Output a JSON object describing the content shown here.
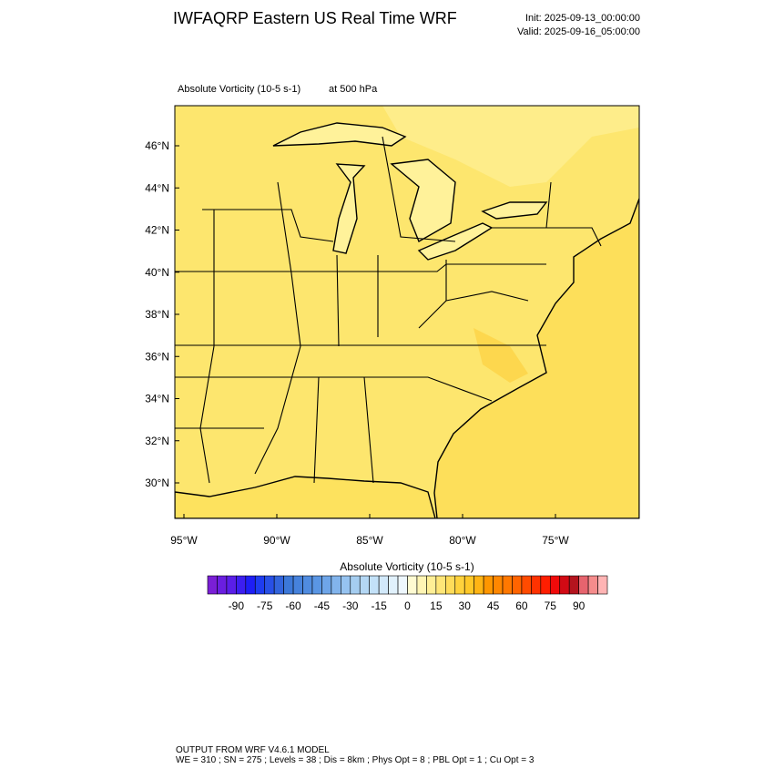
{
  "header": {
    "title": "IWFAQRP Eastern US Real Time WRF",
    "init": "Init: 2025-09-13_00:00:00",
    "valid": "Valid: 2025-09-16_05:00:00"
  },
  "map": {
    "field_label": "Absolute Vorticity   (10-5 s-1)",
    "level_label": "at   500 hPa",
    "lat_labels": [
      "46°N",
      "44°N",
      "42°N",
      "40°N",
      "38°N",
      "36°N",
      "34°N",
      "32°N",
      "30°N"
    ],
    "lon_labels": [
      "95°W",
      "90°W",
      "85°W",
      "80°W",
      "75°W"
    ]
  },
  "colorbar": {
    "title": "Absolute Vorticity  (10-5 s-1)",
    "lim": [
      -105,
      105
    ],
    "ticks": [
      -90,
      -75,
      -60,
      -45,
      -30,
      -15,
      0,
      15,
      30,
      45,
      60,
      75,
      90
    ],
    "colors": [
      "#7a1fd6",
      "#6a1ee0",
      "#5a1ee8",
      "#3c1ef0",
      "#1e1ef5",
      "#1e3cf0",
      "#2850e6",
      "#3264dc",
      "#3c78d8",
      "#4682dc",
      "#508ce0",
      "#5a96e4",
      "#6ea5e8",
      "#82b4ec",
      "#96c3f0",
      "#a5cdf0",
      "#b4d7f4",
      "#c3e1f8",
      "#d2e9fa",
      "#e1f1fc",
      "#eef7fe",
      "#fffbd2",
      "#fff5b4",
      "#ffef96",
      "#ffe678",
      "#ffdc5a",
      "#ffd23c",
      "#ffc828",
      "#ffb414",
      "#ff9600",
      "#ff8700",
      "#ff7800",
      "#ff6400",
      "#ff4b00",
      "#ff3200",
      "#ff1e00",
      "#f00a0a",
      "#d20a14",
      "#b4141e",
      "#e6646e",
      "#f58c8c",
      "#ffb4b4"
    ]
  },
  "footer": {
    "line1": "OUTPUT FROM WRF V4.6.1 MODEL",
    "line2": "WE = 310 ; SN = 275 ; Levels = 38 ; Dis = 8km ; Phys Opt = 8 ; PBL Opt = 1 ; Cu Opt = 3"
  }
}
